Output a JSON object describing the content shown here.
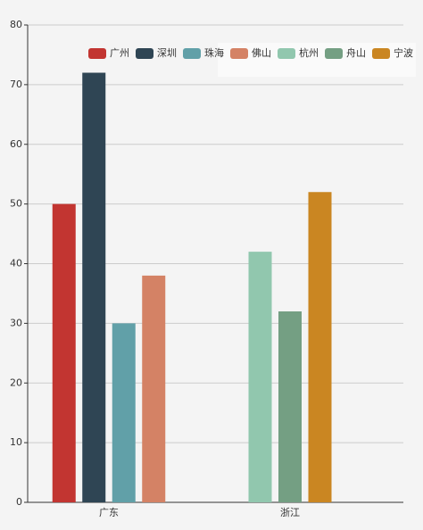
{
  "chart_data": {
    "type": "bar",
    "categories": [
      "广东",
      "浙江"
    ],
    "series": [
      {
        "name": "广州",
        "color": "#c23531",
        "values": [
          50,
          null
        ]
      },
      {
        "name": "深圳",
        "color": "#2f4554",
        "values": [
          72,
          null
        ]
      },
      {
        "name": "珠海",
        "color": "#61a0a8",
        "values": [
          30,
          null
        ]
      },
      {
        "name": "佛山",
        "color": "#d48265",
        "values": [
          38,
          null
        ]
      },
      {
        "name": "杭州",
        "color": "#91c7ae",
        "values": [
          null,
          42
        ]
      },
      {
        "name": "舟山",
        "color": "#749f83",
        "values": [
          null,
          32
        ]
      },
      {
        "name": "宁波",
        "color": "#ca8622",
        "values": [
          null,
          52
        ]
      }
    ],
    "ylim": [
      0,
      80
    ],
    "yticks": [
      0,
      10,
      20,
      30,
      40,
      50,
      60,
      70,
      80
    ],
    "grid": true,
    "legend": "top-right"
  }
}
